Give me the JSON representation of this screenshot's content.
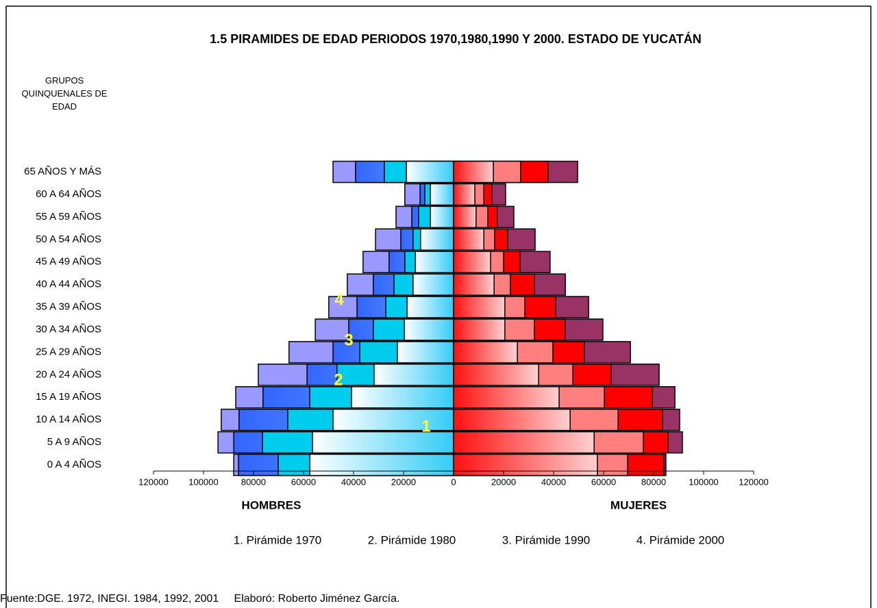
{
  "chart_data": {
    "type": "pyramid",
    "title": "1.5 PIRAMIDES DE EDAD PERIODOS 1970,1980,1990 Y 2000. ESTADO DE YUCATÁN",
    "y_label": "GRUPOS QUINQUENALES DE EDAD",
    "left_label": "HOMBRES",
    "right_label": "MUJERES",
    "source": "Fuente:DGE. 1972, INEGI. 1984, 1992, 2001     Elaboró: Roberto Jiménez García.",
    "categories": [
      "0 A 4 AÑOS",
      "5 A 9 AÑOS",
      "10 A 14 AÑOS",
      "15 A 19 AÑOS",
      "20 A 24 AÑOS",
      "25 A 29 AÑOS",
      "30 A 34 AÑOS",
      "35 A 39 AÑOS",
      "40 A 44 AÑOS",
      "45 A 49 AÑOS",
      "50 A 54 AÑOS",
      "55 A 59 AÑOS",
      "60 A 64 AÑOS",
      "65 AÑOS Y MÁS"
    ],
    "xlim": [
      -120000,
      120000
    ],
    "xticks": [
      {
        "value": -120000,
        "label": "120000"
      },
      {
        "value": -100000,
        "label": "100000"
      },
      {
        "value": -80000,
        "label": "80000"
      },
      {
        "value": -60000,
        "label": "60000"
      },
      {
        "value": -40000,
        "label": "40000"
      },
      {
        "value": -20000,
        "label": "20000"
      },
      0,
      20000,
      40000,
      60000,
      80000,
      100000,
      120000
    ],
    "series": [
      {
        "name": "1. Pirámide 1970",
        "annotation": "1",
        "color_hombres": "#33ccf5",
        "color_mujeres": "#ff1010",
        "hombres": [
          57500,
          56400,
          48200,
          40800,
          31800,
          22500,
          19700,
          18600,
          16200,
          15300,
          13200,
          9300,
          9300,
          18900
        ],
        "mujeres": [
          57500,
          56200,
          46600,
          42200,
          34000,
          25500,
          20500,
          20500,
          16200,
          14800,
          12100,
          9000,
          8500,
          15900
        ]
      },
      {
        "name": "2. Pirámide 1980",
        "annotation": "2",
        "color_hombres": "#00ccee",
        "color_mujeres": "#ff7f7f",
        "hombres": [
          70100,
          76400,
          66300,
          57500,
          46600,
          37500,
          32100,
          27100,
          23800,
          19500,
          16200,
          14000,
          11500,
          27700
        ],
        "mujeres": [
          69600,
          75900,
          65800,
          60300,
          47700,
          39700,
          32300,
          28500,
          22700,
          20000,
          16400,
          13700,
          12100,
          26800
        ]
      },
      {
        "name": "3. Pirámide 1990",
        "annotation": "3",
        "color_hombres": "#3366ff",
        "color_mujeres": "#ff0000",
        "hombres": [
          86000,
          87900,
          85800,
          76200,
          58600,
          48200,
          41900,
          38600,
          32100,
          25800,
          21100,
          16700,
          13400,
          39200
        ],
        "mujeres": [
          84100,
          85800,
          83600,
          79500,
          63000,
          52300,
          44700,
          40800,
          32300,
          26600,
          21600,
          17500,
          15300,
          37800
        ]
      },
      {
        "name": "4. Pirámide 2000",
        "annotation": "4",
        "color_hombres": "#9999ff",
        "color_mujeres": "#993366",
        "hombres": [
          87900,
          94200,
          92900,
          87100,
          78100,
          65800,
          55300,
          49900,
          42500,
          36200,
          31200,
          23000,
          19500,
          48200
        ],
        "mujeres": [
          84900,
          91500,
          90400,
          88500,
          82200,
          70700,
          59700,
          54000,
          44700,
          38600,
          32600,
          24100,
          20800,
          49600
        ]
      }
    ]
  }
}
